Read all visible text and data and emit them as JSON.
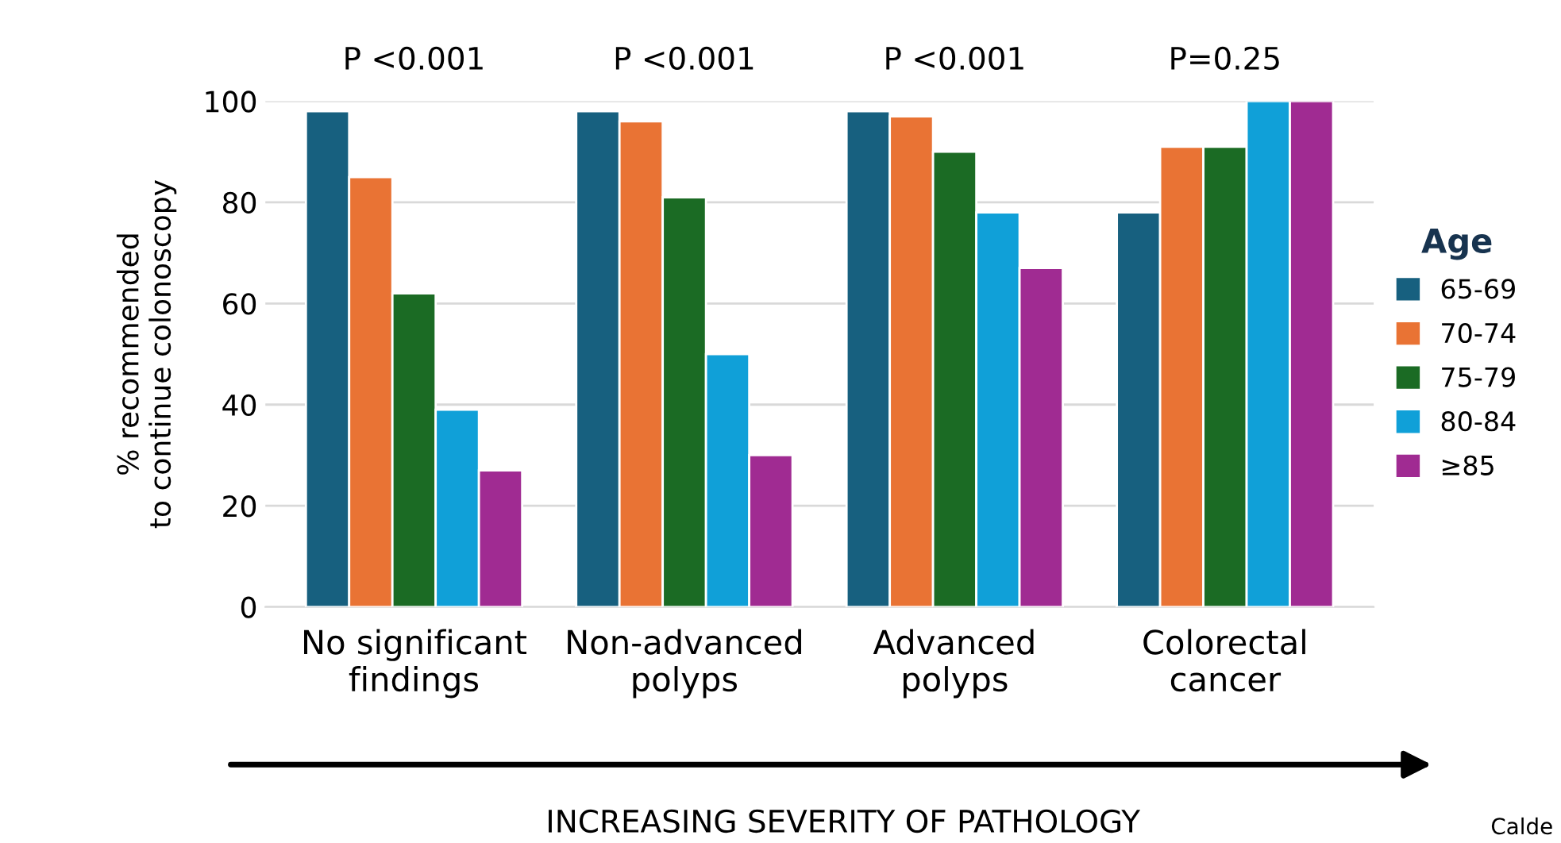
{
  "chart_data": {
    "type": "bar",
    "categories": [
      "No significant\nfindings",
      "Non-advanced\npolyps",
      "Advanced\npolyps",
      "Colorectal\ncancer"
    ],
    "series": [
      {
        "name": "65-69",
        "color": "#17607f",
        "values": [
          98,
          98,
          98,
          78
        ]
      },
      {
        "name": "70-74",
        "color": "#e97334",
        "values": [
          85,
          96,
          97,
          91
        ]
      },
      {
        "name": "75-79",
        "color": "#1b6b24",
        "values": [
          62,
          81,
          90,
          91
        ]
      },
      {
        "name": "80-84",
        "color": "#10a0d8",
        "values": [
          39,
          50,
          78,
          100
        ]
      },
      {
        "name": "≥85",
        "color": "#a02b92",
        "values": [
          27,
          30,
          67,
          100
        ]
      }
    ],
    "ylabel": "% recommended\nto continue colonoscopy",
    "xlabel": "INCREASING SEVERITY OF PATHOLOGY",
    "legend_title": "Age",
    "legend": "right",
    "ylim": [
      0,
      100
    ],
    "yticks": [
      0,
      20,
      40,
      60,
      80,
      100
    ],
    "grid": "y",
    "annotations": [
      "P <0.001",
      "P <0.001",
      "P <0.001",
      "P=0.25",
      "Calde"
    ]
  }
}
